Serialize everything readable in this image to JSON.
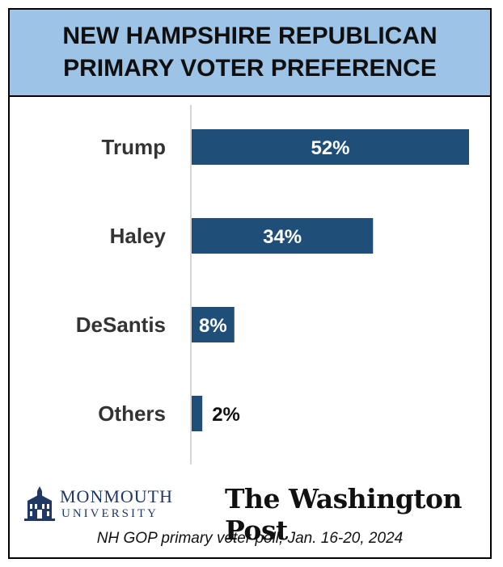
{
  "chart_data": {
    "type": "bar",
    "orientation": "horizontal",
    "title": "NEW HAMPSHIRE REPUBLICAN\nPRIMARY VOTER PREFERENCE",
    "categories": [
      "Trump",
      "Haley",
      "DeSantis",
      "Others"
    ],
    "values": [
      52,
      34,
      8,
      2
    ],
    "value_labels": [
      "52%",
      "34%",
      "8%",
      "2%"
    ],
    "xlim": [
      0,
      52
    ],
    "grid": false,
    "legend": "none",
    "bar_color": "#1f4e79",
    "title_band_color": "#9dc3e6"
  },
  "logos": {
    "monmouth_name": "MONMOUTH",
    "monmouth_sub": "UNIVERSITY",
    "monmouth_icon": "monmouth-building-icon",
    "wapo": "The Washington Post"
  },
  "source": "NH GOP primary voter poll;  Jan. 16-20, 2024"
}
